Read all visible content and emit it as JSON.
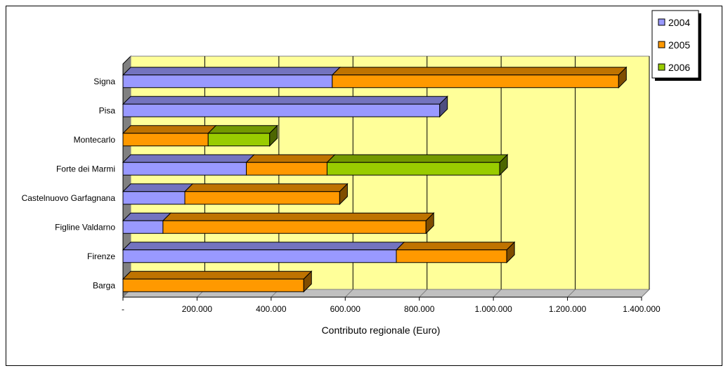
{
  "chart_data": {
    "type": "bar",
    "orientation": "horizontal",
    "stacked": true,
    "three_d": true,
    "categories": [
      "Signa",
      "Pisa",
      "Montecarlo",
      "Forte dei Marmi",
      "Castelnuovo Garfagnana",
      "Figline Valdarno",
      "Firenze",
      "Barga"
    ],
    "series": [
      {
        "name": "2004",
        "color": "#9999ff",
        "values": [
          565000,
          855000,
          0,
          333000,
          167000,
          108000,
          738000,
          0
        ]
      },
      {
        "name": "2005",
        "color": "#ff9900",
        "values": [
          773000,
          0,
          230000,
          218000,
          418000,
          710000,
          298000,
          488000
        ]
      },
      {
        "name": "2006",
        "color": "#99cc00",
        "values": [
          0,
          0,
          166000,
          466000,
          0,
          0,
          0,
          0
        ]
      }
    ],
    "xlabel": "Contributo regionale (Euro)",
    "ylabel": "",
    "xlim": [
      0,
      1400000
    ],
    "x_ticks": [
      "-",
      "200.000",
      "400.000",
      "600.000",
      "800.000",
      "1.000.000",
      "1.200.000",
      "1.400.000"
    ],
    "x_tick_values": [
      0,
      200000,
      400000,
      600000,
      800000,
      1000000,
      1200000,
      1400000
    ],
    "grid": true,
    "legend": "top-right",
    "wall_color": "#ffff99"
  }
}
